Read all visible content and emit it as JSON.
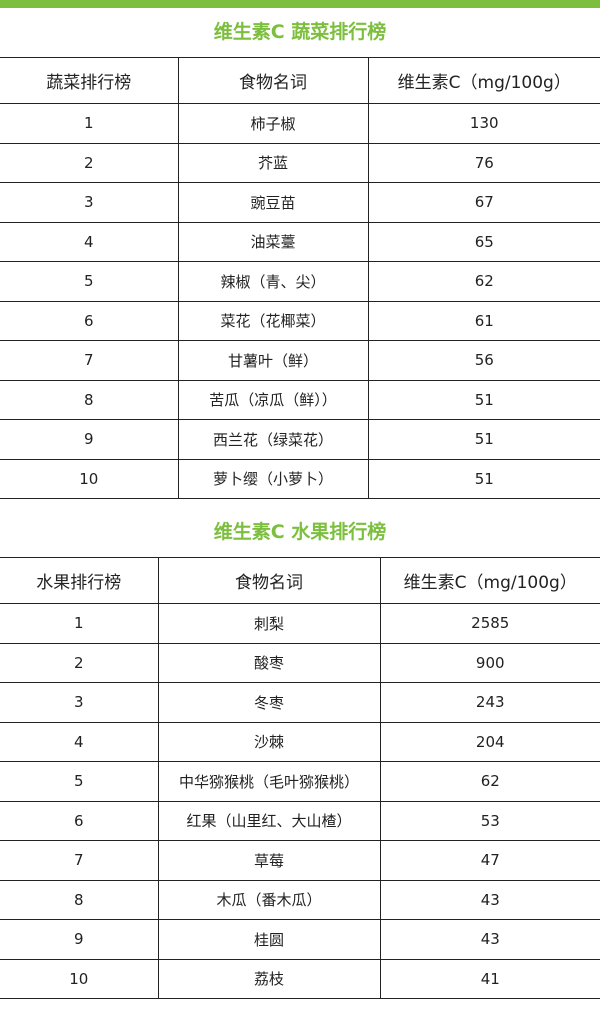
{
  "accent_color": "#7cbf3e",
  "vegetables": {
    "title": "维生素C 蔬菜排行榜",
    "headers": [
      "蔬菜排行榜",
      "食物名词",
      "维生素C（mg/100g）"
    ],
    "rows": [
      [
        "1",
        "柿子椒",
        "130"
      ],
      [
        "2",
        "芥蓝",
        "76"
      ],
      [
        "3",
        "豌豆苗",
        "67"
      ],
      [
        "4",
        "油菜薹",
        "65"
      ],
      [
        "5",
        "辣椒（青、尖）",
        "62"
      ],
      [
        "6",
        "菜花（花椰菜）",
        "61"
      ],
      [
        "7",
        "甘薯叶（鲜）",
        "56"
      ],
      [
        "8",
        "苦瓜（凉瓜（鲜））",
        "51"
      ],
      [
        "9",
        "西兰花（绿菜花）",
        "51"
      ],
      [
        "10",
        "萝卜缨（小萝卜）",
        "51"
      ]
    ]
  },
  "fruits": {
    "title": "维生素C 水果排行榜",
    "headers": [
      "水果排行榜",
      "食物名词",
      "维生素C（mg/100g）"
    ],
    "rows": [
      [
        "1",
        "刺梨",
        "2585"
      ],
      [
        "2",
        "酸枣",
        "900"
      ],
      [
        "3",
        "冬枣",
        "243"
      ],
      [
        "4",
        "沙棘",
        "204"
      ],
      [
        "5",
        "中华猕猴桃（毛叶猕猴桃）",
        "62"
      ],
      [
        "6",
        "红果（山里红、大山楂）",
        "53"
      ],
      [
        "7",
        "草莓",
        "47"
      ],
      [
        "8",
        "木瓜（番木瓜）",
        "43"
      ],
      [
        "9",
        "桂圆",
        "43"
      ],
      [
        "10",
        "荔枝",
        "41"
      ]
    ]
  }
}
